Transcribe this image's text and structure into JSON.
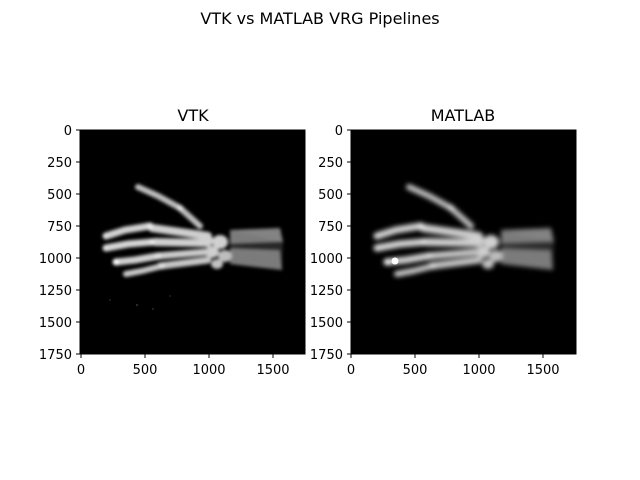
{
  "figure": {
    "title": "VTK vs MATLAB VRG Pipelines"
  },
  "panels": [
    {
      "title": "VTK",
      "image": "x-ray-hand-render",
      "xticks": [
        "0",
        "500",
        "1000",
        "1500"
      ],
      "yticks": [
        "0",
        "250",
        "500",
        "750",
        "1000",
        "1250",
        "1500",
        "1750"
      ]
    },
    {
      "title": "MATLAB",
      "image": "x-ray-hand-render",
      "xticks": [
        "0",
        "500",
        "1000",
        "1500"
      ],
      "yticks": [
        "0",
        "250",
        "500",
        "750",
        "1000",
        "1250",
        "1500",
        "1750"
      ]
    }
  ],
  "colors": {
    "background": "#000000",
    "bone_vtk": "#c8c8c8",
    "bone_matlab": "#d8d8d8"
  }
}
